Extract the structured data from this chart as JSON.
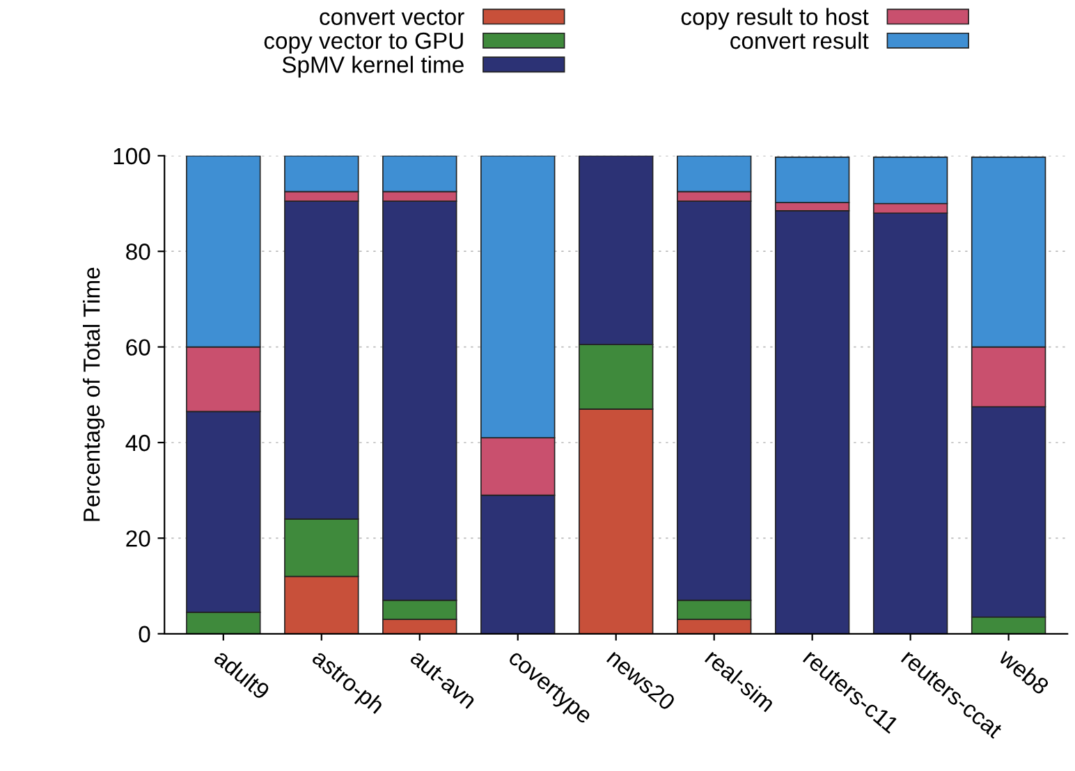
{
  "chart_data": {
    "type": "bar",
    "stacked": true,
    "ylabel": "Percentage of Total Time",
    "categories": [
      "adult9",
      "astro-ph",
      "aut-avn",
      "covertype",
      "news20",
      "real-sim",
      "reuters-c11",
      "reuters-ccat",
      "web8"
    ],
    "series": [
      {
        "name": "convert vector",
        "color": "#c8503a",
        "values": [
          0,
          12,
          3,
          0,
          47,
          3,
          null,
          null,
          null
        ]
      },
      {
        "name": "copy vector to GPU",
        "color": "#3f8a3c",
        "values": [
          4.5,
          12,
          4,
          0,
          13.5,
          4,
          0,
          0,
          3.5
        ]
      },
      {
        "name": "SpMV kernel time",
        "color": "#2c3275",
        "values": [
          42,
          66.5,
          83.5,
          29,
          39.5,
          83.5,
          88.5,
          88,
          44
        ]
      },
      {
        "name": "copy result to host",
        "color": "#c9506e",
        "values": [
          13.5,
          2,
          2,
          12,
          0,
          2,
          1.7,
          2,
          12.5
        ]
      },
      {
        "name": "convert result",
        "color": "#3f8fd3",
        "values": [
          40,
          7.5,
          7.5,
          59,
          0,
          7.5,
          9.5,
          9.7,
          39.7
        ]
      }
    ],
    "ylim": [
      0,
      100
    ],
    "yticks": [
      0,
      20,
      40,
      60,
      80,
      100
    ],
    "grid": "y",
    "legend": "top"
  }
}
